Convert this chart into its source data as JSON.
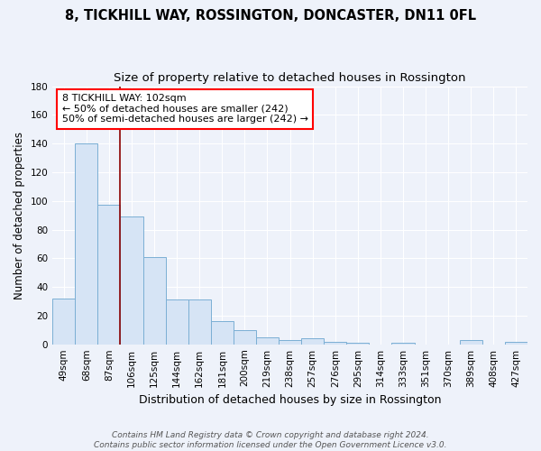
{
  "title": "8, TICKHILL WAY, ROSSINGTON, DONCASTER, DN11 0FL",
  "subtitle": "Size of property relative to detached houses in Rossington",
  "xlabel": "Distribution of detached houses by size in Rossington",
  "ylabel": "Number of detached properties",
  "categories": [
    "49sqm",
    "68sqm",
    "87sqm",
    "106sqm",
    "125sqm",
    "144sqm",
    "162sqm",
    "181sqm",
    "200sqm",
    "219sqm",
    "238sqm",
    "257sqm",
    "276sqm",
    "295sqm",
    "314sqm",
    "333sqm",
    "351sqm",
    "370sqm",
    "389sqm",
    "408sqm",
    "427sqm"
  ],
  "values": [
    32,
    140,
    97,
    89,
    61,
    31,
    31,
    16,
    10,
    5,
    3,
    4,
    2,
    1,
    0,
    1,
    0,
    0,
    3,
    0,
    2
  ],
  "bar_color": "#d6e4f5",
  "bar_edge_color": "#7bafd4",
  "red_line_x": 2.5,
  "annotation_line1": "8 TICKHILL WAY: 102sqm",
  "annotation_line2": "← 50% of detached houses are smaller (242)",
  "annotation_line3": "50% of semi-detached houses are larger (242) →",
  "annotation_box_facecolor": "white",
  "annotation_box_edgecolor": "red",
  "ylim": [
    0,
    180
  ],
  "yticks": [
    0,
    20,
    40,
    60,
    80,
    100,
    120,
    140,
    160,
    180
  ],
  "footer_line1": "Contains HM Land Registry data © Crown copyright and database right 2024.",
  "footer_line2": "Contains public sector information licensed under the Open Government Licence v3.0.",
  "bg_color": "#eef2fa",
  "grid_color": "#ffffff",
  "title_fontsize": 10.5,
  "subtitle_fontsize": 9.5,
  "ylabel_fontsize": 8.5,
  "xlabel_fontsize": 9,
  "tick_fontsize": 7.5,
  "annot_fontsize": 8,
  "footer_fontsize": 6.5
}
